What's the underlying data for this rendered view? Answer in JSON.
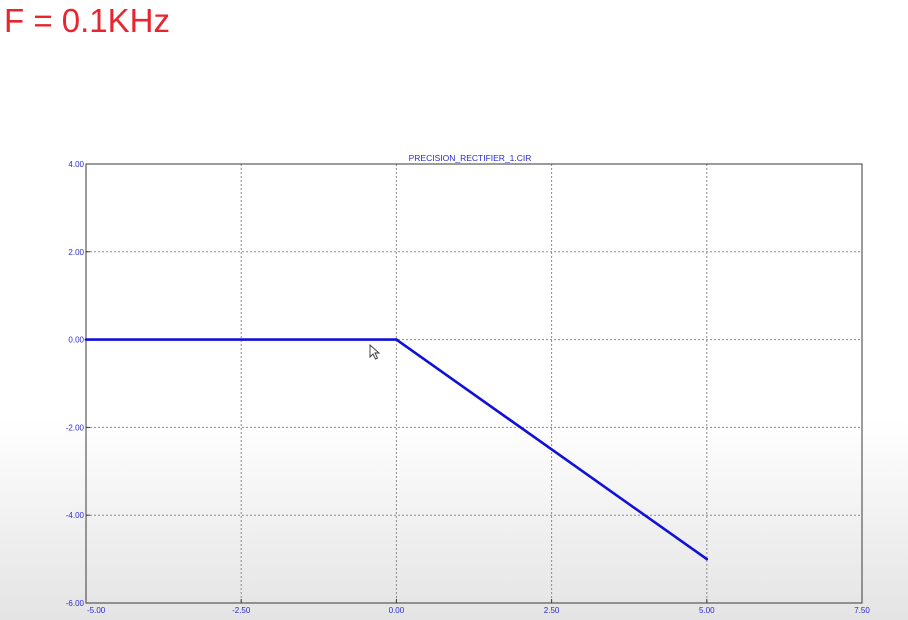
{
  "heading": "F = 0.1KHz",
  "chart_data": {
    "type": "line",
    "title": "PRECISION_RECTIFIER_1.CIR",
    "xlabel": "",
    "ylabel": "",
    "xlim": [
      -5.0,
      7.5
    ],
    "ylim": [
      -6.0,
      4.0
    ],
    "xticks": [
      "-5.00",
      "-2.50",
      "0.00",
      "2.50",
      "5.00",
      "7.50"
    ],
    "yticks": [
      "4.00",
      "2.00",
      "0.00",
      "-2.00",
      "-4.00",
      "-6.00"
    ],
    "grid": true,
    "series": [
      {
        "x": [
          -5.0,
          0.0,
          5.0
        ],
        "y": [
          0.0,
          0.0,
          -5.0
        ],
        "color": "#1010d8"
      }
    ]
  },
  "colors": {
    "heading": "#e8242c",
    "axis_text": "#2a2ad0",
    "trace": "#1010d8",
    "grid": "#8a8a8a"
  }
}
